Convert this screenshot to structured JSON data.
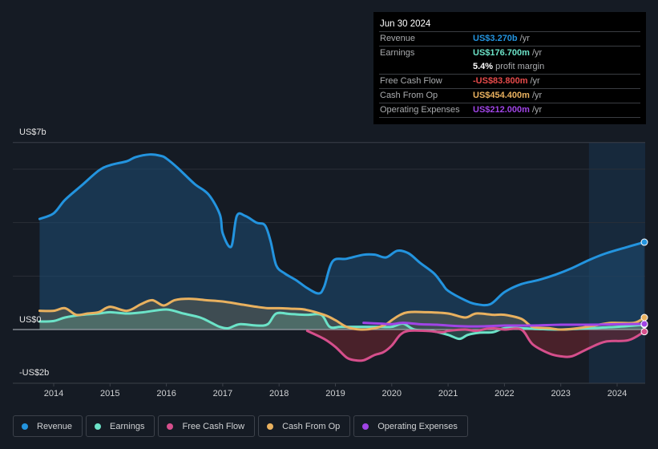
{
  "tooltip": {
    "date": "Jun 30 2024",
    "rows": [
      {
        "label": "Revenue",
        "value": "US$3.270b",
        "unit": "/yr",
        "color": "#2394df"
      },
      {
        "label": "Earnings",
        "value": "US$176.700m",
        "unit": "/yr",
        "color": "#6ce3c8"
      },
      {
        "label": "",
        "value": "5.4%",
        "unit": "profit margin",
        "color": "#ffffff"
      },
      {
        "label": "Free Cash Flow",
        "value": "-US$83.800m",
        "unit": "/yr",
        "color": "#e64a4a"
      },
      {
        "label": "Cash From Op",
        "value": "US$454.400m",
        "unit": "/yr",
        "color": "#e9b15f"
      },
      {
        "label": "Operating Expenses",
        "value": "US$212.000m",
        "unit": "/yr",
        "color": "#a044e6"
      }
    ]
  },
  "chart_data": {
    "type": "line",
    "title": "",
    "xlabel": "",
    "ylabel": "",
    "ylim": [
      -2,
      7
    ],
    "y_unit": "US$ billions",
    "y_tick_labels": [
      {
        "value": 7,
        "label": "US$7b"
      },
      {
        "value": 0,
        "label": "US$0"
      },
      {
        "value": -2,
        "label": "-US$2b"
      }
    ],
    "gridlines": [
      7,
      6,
      4,
      2
    ],
    "x_ticks": [
      2014,
      2015,
      2016,
      2017,
      2018,
      2019,
      2020,
      2021,
      2022,
      2023,
      2024
    ],
    "xlim": [
      2013.3,
      2024.5
    ],
    "highlight_from": 2023.5,
    "legend_position": "bottom-left",
    "series": [
      {
        "name": "Revenue",
        "color": "#2394df",
        "fill": true,
        "x": [
          2013.75,
          2014.0,
          2014.2,
          2014.5,
          2014.8,
          2015.0,
          2015.3,
          2015.45,
          2015.7,
          2015.9,
          2016.0,
          2016.2,
          2016.5,
          2016.75,
          2016.95,
          2017.0,
          2017.15,
          2017.25,
          2017.4,
          2017.6,
          2017.75,
          2017.85,
          2017.95,
          2018.1,
          2018.3,
          2018.5,
          2018.7,
          2018.8,
          2018.95,
          2019.2,
          2019.5,
          2019.7,
          2019.9,
          2020.1,
          2020.3,
          2020.5,
          2020.75,
          2020.9,
          2021.0,
          2021.3,
          2021.5,
          2021.75,
          2022.0,
          2022.3,
          2022.6,
          2022.9,
          2023.2,
          2023.5,
          2023.8,
          2024.2,
          2024.48
        ],
        "y": [
          4.14,
          4.35,
          4.85,
          5.4,
          5.95,
          6.15,
          6.3,
          6.45,
          6.55,
          6.5,
          6.4,
          6.05,
          5.45,
          5.05,
          4.3,
          3.6,
          3.1,
          4.25,
          4.25,
          4.0,
          3.9,
          3.3,
          2.4,
          2.1,
          1.85,
          1.55,
          1.35,
          1.6,
          2.55,
          2.65,
          2.8,
          2.8,
          2.7,
          2.95,
          2.85,
          2.5,
          2.1,
          1.7,
          1.45,
          1.1,
          0.95,
          0.95,
          1.4,
          1.7,
          1.85,
          2.05,
          2.3,
          2.6,
          2.85,
          3.1,
          3.27
        ]
      },
      {
        "name": "Earnings",
        "color": "#6ce3c8",
        "fill": true,
        "x": [
          2013.75,
          2014.0,
          2014.2,
          2014.5,
          2014.8,
          2015.0,
          2015.3,
          2015.6,
          2016.0,
          2016.3,
          2016.6,
          2016.8,
          2016.95,
          2017.1,
          2017.3,
          2017.6,
          2017.8,
          2017.95,
          2018.2,
          2018.5,
          2018.75,
          2018.9,
          2019.1,
          2019.5,
          2019.8,
          2020.0,
          2020.2,
          2020.4,
          2020.7,
          2021.0,
          2021.2,
          2021.35,
          2021.55,
          2021.8,
          2022.0,
          2022.3,
          2022.6,
          2023.0,
          2023.5,
          2024.0,
          2024.48
        ],
        "y": [
          0.3,
          0.32,
          0.45,
          0.55,
          0.6,
          0.65,
          0.6,
          0.65,
          0.75,
          0.6,
          0.45,
          0.25,
          0.1,
          0.05,
          0.2,
          0.15,
          0.2,
          0.6,
          0.58,
          0.55,
          0.55,
          0.1,
          0.1,
          0.1,
          0.1,
          0.1,
          0.22,
          0.0,
          -0.05,
          -0.2,
          -0.35,
          -0.2,
          -0.12,
          -0.1,
          0.05,
          0.05,
          0.02,
          0.0,
          0.05,
          0.1,
          0.18
        ]
      },
      {
        "name": "Free Cash Flow",
        "color": "#d64f8c",
        "fill": true,
        "x": [
          2018.5,
          2018.8,
          2019.0,
          2019.2,
          2019.35,
          2019.5,
          2019.7,
          2019.85,
          2020.0,
          2020.15,
          2020.3,
          2020.6,
          2020.9,
          2021.0,
          2021.3,
          2021.5,
          2021.75,
          2022.0,
          2022.3,
          2022.5,
          2022.8,
          2023.0,
          2023.2,
          2023.5,
          2023.8,
          2024.2,
          2024.48
        ],
        "y": [
          -0.05,
          -0.35,
          -0.65,
          -1.05,
          -1.15,
          -1.15,
          -0.95,
          -0.85,
          -0.6,
          -0.2,
          -0.05,
          -0.05,
          -0.1,
          -0.05,
          0.0,
          -0.05,
          0.05,
          0.0,
          0.0,
          -0.55,
          -0.9,
          -1.0,
          -1.0,
          -0.7,
          -0.45,
          -0.4,
          -0.08
        ]
      },
      {
        "name": "Cash From Op",
        "color": "#e9b15f",
        "fill": true,
        "x": [
          2013.75,
          2014.0,
          2014.2,
          2014.4,
          2014.6,
          2014.8,
          2015.0,
          2015.3,
          2015.55,
          2015.75,
          2015.95,
          2016.15,
          2016.4,
          2016.7,
          2017.0,
          2017.3,
          2017.6,
          2017.8,
          2018.0,
          2018.2,
          2018.45,
          2018.8,
          2019.0,
          2019.2,
          2019.45,
          2019.7,
          2019.9,
          2020.0,
          2020.15,
          2020.3,
          2020.6,
          2021.0,
          2021.3,
          2021.5,
          2021.8,
          2022.0,
          2022.3,
          2022.5,
          2022.8,
          2023.0,
          2023.3,
          2023.6,
          2023.9,
          2024.3,
          2024.48
        ],
        "y": [
          0.7,
          0.7,
          0.8,
          0.55,
          0.6,
          0.65,
          0.85,
          0.7,
          0.95,
          1.1,
          0.9,
          1.1,
          1.15,
          1.1,
          1.05,
          0.95,
          0.85,
          0.8,
          0.8,
          0.78,
          0.75,
          0.55,
          0.35,
          0.1,
          0.0,
          0.05,
          0.2,
          0.35,
          0.55,
          0.65,
          0.65,
          0.6,
          0.45,
          0.6,
          0.55,
          0.55,
          0.4,
          0.1,
          0.05,
          0.0,
          0.05,
          0.15,
          0.25,
          0.25,
          0.45
        ]
      },
      {
        "name": "Operating Expenses",
        "color": "#a044e6",
        "fill": false,
        "x": [
          2019.5,
          2019.8,
          2020.0,
          2020.2,
          2020.5,
          2020.8,
          2021.0,
          2021.3,
          2021.6,
          2022.0,
          2022.5,
          2023.0,
          2023.5,
          2024.0,
          2024.48
        ],
        "y": [
          0.25,
          0.22,
          0.2,
          0.25,
          0.2,
          0.18,
          0.15,
          0.12,
          0.12,
          0.15,
          0.15,
          0.18,
          0.18,
          0.2,
          0.21
        ]
      }
    ]
  },
  "legend": [
    {
      "label": "Revenue",
      "color": "#2394df"
    },
    {
      "label": "Earnings",
      "color": "#6ce3c8"
    },
    {
      "label": "Free Cash Flow",
      "color": "#d64f8c"
    },
    {
      "label": "Cash From Op",
      "color": "#e9b15f"
    },
    {
      "label": "Operating Expenses",
      "color": "#a044e6"
    }
  ]
}
